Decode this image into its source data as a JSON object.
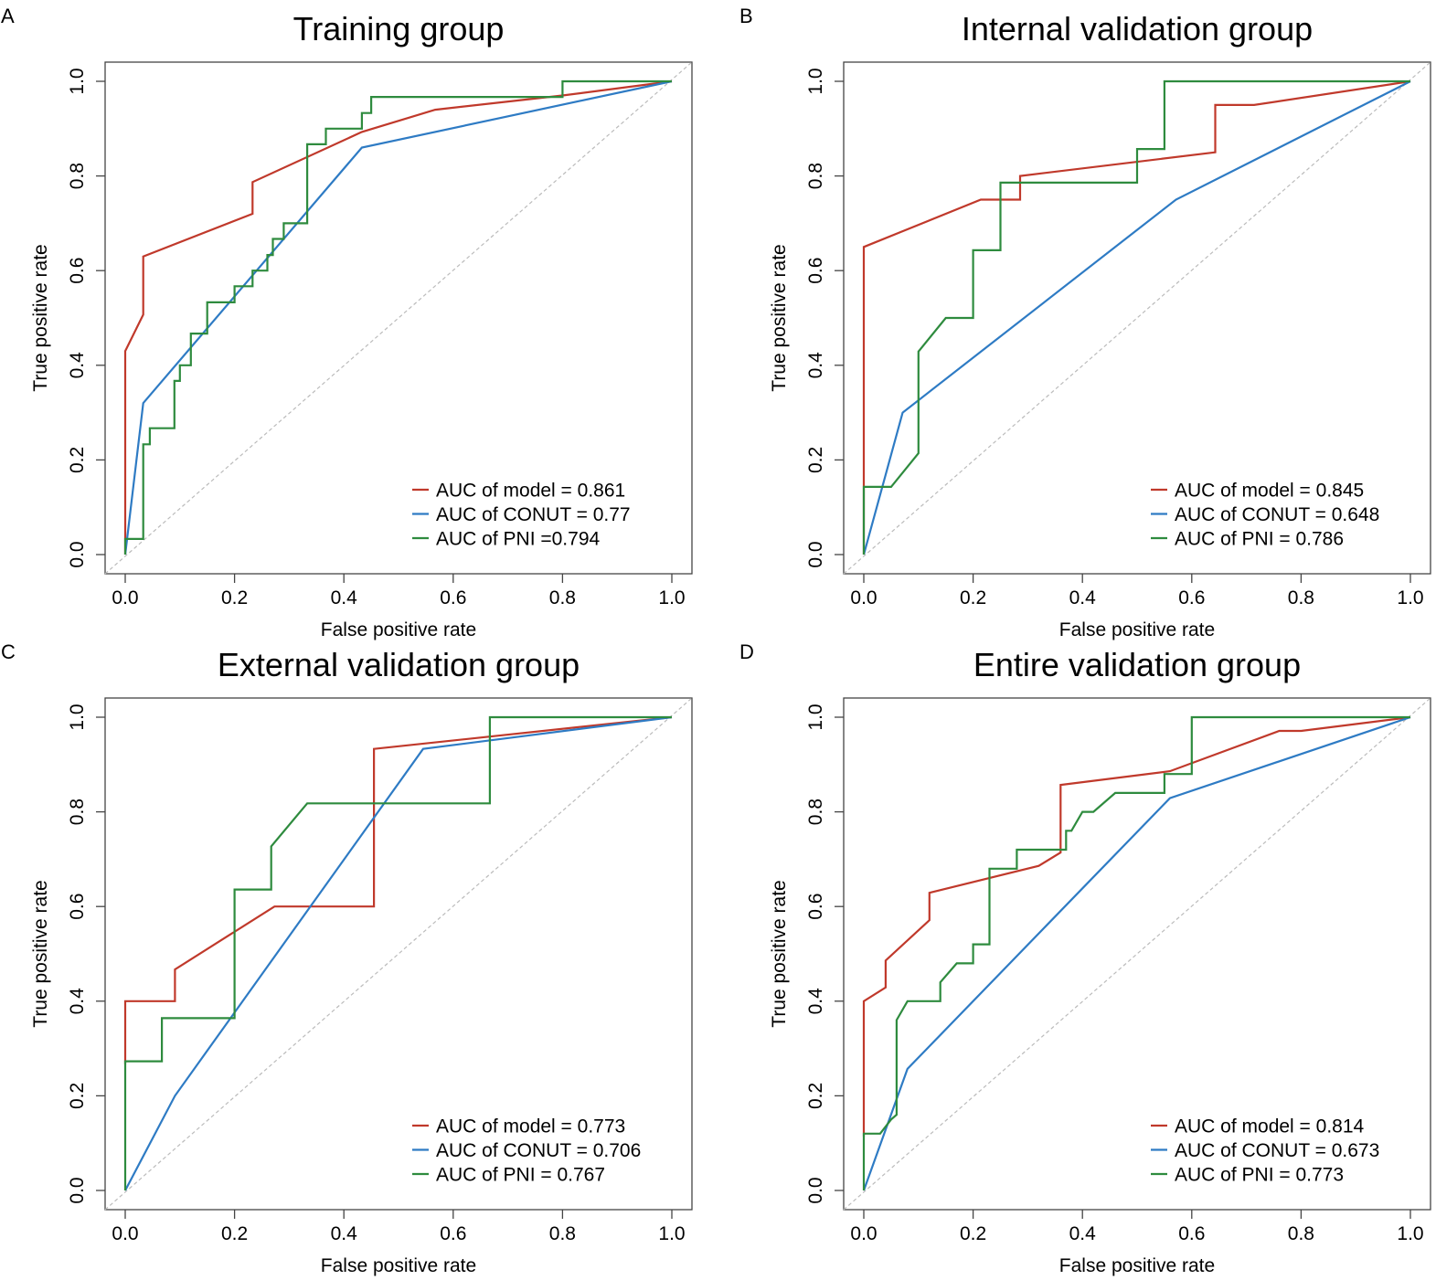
{
  "figure": {
    "line_colors": {
      "model": "#C0392B",
      "conut": "#2E7BC4",
      "pni": "#2E8B3E",
      "diagonal": "#BBBBBB",
      "axes": "#444444"
    }
  },
  "chart_data": [
    {
      "panel_label": "A",
      "type": "line",
      "title": "Training group",
      "xlabel": "False positive rate",
      "ylabel": "True positive rate",
      "xlim": [
        0,
        1
      ],
      "ylim": [
        0,
        1
      ],
      "xticks": [
        "0.0",
        "0.2",
        "0.4",
        "0.6",
        "0.8",
        "1.0"
      ],
      "yticks": [
        "0.0",
        "0.2",
        "0.4",
        "0.6",
        "0.8",
        "1.0"
      ],
      "legend_position": "bottom-right",
      "series": [
        {
          "key": "model",
          "name": "AUC of model = 0.861",
          "x": [
            0,
            0,
            0.033,
            0.033,
            0.233,
            0.233,
            0.433,
            0.567,
            0.8,
            1
          ],
          "y": [
            0,
            0.43,
            0.507,
            0.63,
            0.72,
            0.787,
            0.893,
            0.94,
            0.97,
            1
          ]
        },
        {
          "key": "conut",
          "name": "AUC of CONUT = 0.77",
          "x": [
            0,
            0.033,
            0.433,
            1
          ],
          "y": [
            0,
            0.32,
            0.86,
            1
          ]
        },
        {
          "key": "pni",
          "name": "AUC of PNI =0.794",
          "x": [
            0,
            0,
            0.033,
            0.033,
            0.045,
            0.045,
            0.09,
            0.09,
            0.1,
            0.1,
            0.12,
            0.12,
            0.15,
            0.15,
            0.2,
            0.2,
            0.233,
            0.233,
            0.26,
            0.26,
            0.27,
            0.27,
            0.29,
            0.29,
            0.333,
            0.333,
            0.367,
            0.367,
            0.433,
            0.433,
            0.45,
            0.45,
            0.467,
            0.467,
            0.8,
            0.8,
            1
          ],
          "y": [
            0,
            0.033,
            0.033,
            0.233,
            0.233,
            0.267,
            0.267,
            0.367,
            0.367,
            0.4,
            0.4,
            0.467,
            0.467,
            0.533,
            0.533,
            0.567,
            0.567,
            0.6,
            0.6,
            0.633,
            0.633,
            0.667,
            0.667,
            0.7,
            0.7,
            0.867,
            0.867,
            0.9,
            0.9,
            0.933,
            0.933,
            0.967,
            0.967,
            0.967,
            0.967,
            1,
            1
          ]
        }
      ]
    },
    {
      "panel_label": "B",
      "type": "line",
      "title": "Internal validation group",
      "xlabel": "False positive rate",
      "ylabel": "True positive rate",
      "xlim": [
        0,
        1
      ],
      "ylim": [
        0,
        1
      ],
      "xticks": [
        "0.0",
        "0.2",
        "0.4",
        "0.6",
        "0.8",
        "1.0"
      ],
      "yticks": [
        "0.0",
        "0.2",
        "0.4",
        "0.6",
        "0.8",
        "1.0"
      ],
      "legend_position": "bottom-right",
      "series": [
        {
          "key": "model",
          "name": "AUC of model = 0.845",
          "x": [
            0,
            0,
            0.214,
            0.286,
            0.286,
            0.643,
            0.643,
            0.714,
            1
          ],
          "y": [
            0,
            0.65,
            0.75,
            0.75,
            0.8,
            0.85,
            0.95,
            0.95,
            1
          ]
        },
        {
          "key": "conut",
          "name": "AUC of CONUT = 0.648",
          "x": [
            0,
            0.071,
            0.571,
            1
          ],
          "y": [
            0,
            0.3,
            0.75,
            1
          ]
        },
        {
          "key": "pni",
          "name": "AUC of PNI = 0.786",
          "x": [
            0,
            0,
            0.05,
            0.1,
            0.1,
            0.15,
            0.2,
            0.2,
            0.25,
            0.25,
            0.5,
            0.5,
            0.55,
            0.55,
            1
          ],
          "y": [
            0,
            0.143,
            0.143,
            0.214,
            0.429,
            0.5,
            0.5,
            0.643,
            0.643,
            0.786,
            0.786,
            0.857,
            0.857,
            1,
            1
          ]
        }
      ]
    },
    {
      "panel_label": "C",
      "type": "line",
      "title": "External validation group",
      "xlabel": "False positive rate",
      "ylabel": "True positive rate",
      "xlim": [
        0,
        1
      ],
      "ylim": [
        0,
        1
      ],
      "xticks": [
        "0.0",
        "0.2",
        "0.4",
        "0.6",
        "0.8",
        "1.0"
      ],
      "yticks": [
        "0.0",
        "0.2",
        "0.4",
        "0.6",
        "0.8",
        "1.0"
      ],
      "legend_position": "bottom-right",
      "series": [
        {
          "key": "model",
          "name": "AUC of model = 0.773",
          "x": [
            0,
            0,
            0.091,
            0.091,
            0.273,
            0.455,
            0.455,
            1
          ],
          "y": [
            0.267,
            0.4,
            0.4,
            0.467,
            0.6,
            0.6,
            0.933,
            1
          ]
        },
        {
          "key": "conut",
          "name": "AUC of CONUT = 0.706",
          "x": [
            0,
            0.091,
            0.545,
            1
          ],
          "y": [
            0,
            0.2,
            0.933,
            1
          ]
        },
        {
          "key": "pni",
          "name": "AUC of PNI = 0.767",
          "x": [
            0,
            0,
            0.067,
            0.067,
            0.2,
            0.2,
            0.267,
            0.267,
            0.333,
            0.667,
            0.667,
            1
          ],
          "y": [
            0,
            0.273,
            0.273,
            0.364,
            0.364,
            0.636,
            0.636,
            0.727,
            0.818,
            0.818,
            1,
            1
          ]
        }
      ]
    },
    {
      "panel_label": "D",
      "type": "line",
      "title": "Entire validation group",
      "xlabel": "False positive rate",
      "ylabel": "True positive rate",
      "xlim": [
        0,
        1
      ],
      "ylim": [
        0,
        1
      ],
      "xticks": [
        "0.0",
        "0.2",
        "0.4",
        "0.6",
        "0.8",
        "1.0"
      ],
      "yticks": [
        "0.0",
        "0.2",
        "0.4",
        "0.6",
        "0.8",
        "1.0"
      ],
      "legend_position": "bottom-right",
      "series": [
        {
          "key": "model",
          "name": "AUC of model = 0.814",
          "x": [
            0,
            0,
            0.04,
            0.04,
            0.12,
            0.12,
            0.32,
            0.36,
            0.36,
            0.56,
            0.76,
            0.8,
            1
          ],
          "y": [
            0.114,
            0.4,
            0.429,
            0.486,
            0.571,
            0.629,
            0.686,
            0.714,
            0.857,
            0.886,
            0.971,
            0.971,
            1
          ]
        },
        {
          "key": "conut",
          "name": "AUC of CONUT = 0.673",
          "x": [
            0,
            0.08,
            0.56,
            1
          ],
          "y": [
            0,
            0.257,
            0.829,
            1
          ]
        },
        {
          "key": "pni",
          "name": "AUC of PNI = 0.773",
          "x": [
            0,
            0,
            0.03,
            0.05,
            0.06,
            0.06,
            0.08,
            0.08,
            0.14,
            0.14,
            0.17,
            0.2,
            0.2,
            0.23,
            0.23,
            0.28,
            0.28,
            0.37,
            0.37,
            0.38,
            0.4,
            0.42,
            0.46,
            0.51,
            0.55,
            0.55,
            0.6,
            0.6,
            1
          ],
          "y": [
            0,
            0.12,
            0.12,
            0.15,
            0.16,
            0.36,
            0.4,
            0.4,
            0.4,
            0.44,
            0.48,
            0.48,
            0.52,
            0.52,
            0.68,
            0.68,
            0.72,
            0.72,
            0.76,
            0.76,
            0.8,
            0.8,
            0.84,
            0.84,
            0.84,
            0.88,
            0.88,
            1,
            1
          ]
        }
      ]
    }
  ]
}
